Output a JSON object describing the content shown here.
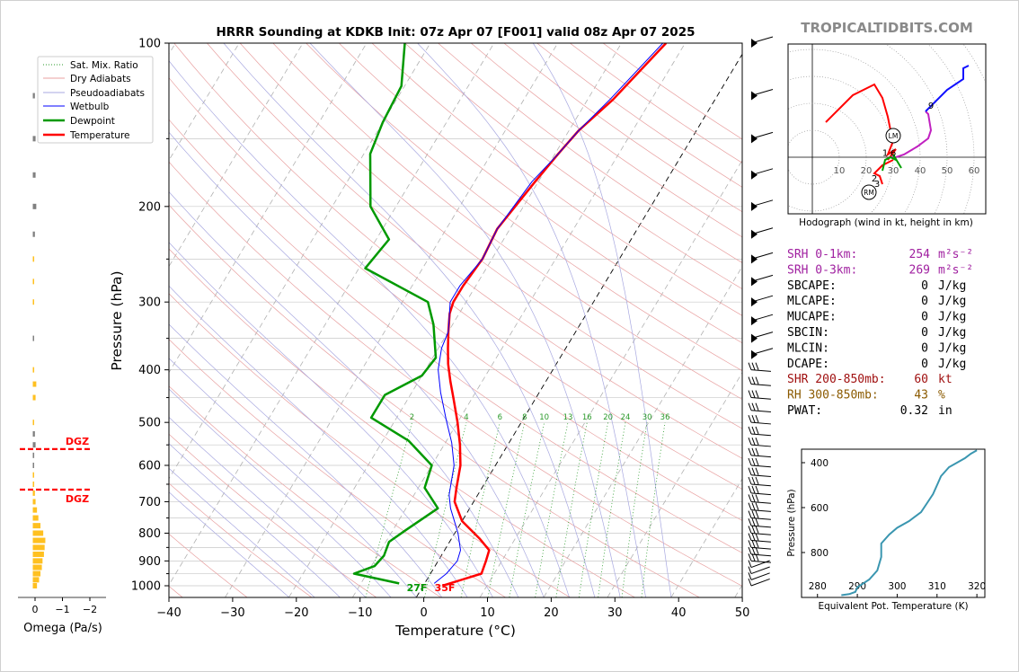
{
  "page": {
    "title": "HRRR Sounding at KDKB Init: 07z Apr 07 [F001] valid 08z Apr 07 2025",
    "brand": "TROPICALTIDBITS.COM"
  },
  "colors": {
    "temperature": "#ff0000",
    "dewpoint": "#009900",
    "wetbulb": "#0000ff",
    "dry_adiabat": "#e8a0a0",
    "pseudoadiabat": "#a8a8e0",
    "mixing_ratio": "#2a9a2a",
    "isotherm": "#b0b0b0",
    "srh": "#a020a0",
    "shr": "#a01010",
    "rh": "#8b5a00",
    "omega_bar": "#ffc020",
    "omega_neg": "#808080",
    "dgz": "#ff0000",
    "theta_e": "#3a96b0"
  },
  "skewt": {
    "xlabel": "Temperature (°C)",
    "ylabel": "Pressure (hPa)",
    "x_ticks": [
      "−40",
      "−30",
      "−20",
      "−10",
      "0",
      "10",
      "20",
      "30",
      "40",
      "50"
    ],
    "y_ticks": [
      "100",
      "200",
      "300",
      "400",
      "500",
      "600",
      "700",
      "800",
      "900",
      "1000"
    ],
    "surface_dewpoint_label": "27F",
    "surface_temp_label": "35F",
    "mixing_ratio_labels": [
      "2",
      "4",
      "6",
      "8",
      "10",
      "13",
      "16",
      "20",
      "24",
      "30",
      "36"
    ],
    "legend": [
      "Sat. Mix. Ratio",
      "Dry Adiabats",
      "Pseudoadiabats",
      "Wetbulb",
      "Dewpoint",
      "Temperature"
    ]
  },
  "chart_data": [
    {
      "type": "line",
      "name": "skew-t",
      "xlim": [
        -40,
        50
      ],
      "ylim": [
        1050,
        100
      ],
      "yscale": "log",
      "x_unit": "°C",
      "y_unit": "hPa",
      "grid": true,
      "legend_placement": "top-left",
      "series": [
        {
          "name": "Temperature",
          "points": [
            [
              3.0,
              1000
            ],
            [
              8.0,
              950
            ],
            [
              7.5,
              900
            ],
            [
              7.0,
              860
            ],
            [
              4.5,
              820
            ],
            [
              0.0,
              760
            ],
            [
              -3.0,
              700
            ],
            [
              -4.0,
              660
            ],
            [
              -5.5,
              600
            ],
            [
              -7.5,
              550
            ],
            [
              -10.0,
              500
            ],
            [
              -13.0,
              450
            ],
            [
              -15.0,
              420
            ],
            [
              -17.0,
              390
            ],
            [
              -18.5,
              365
            ],
            [
              -20.0,
              340
            ],
            [
              -21.5,
              315
            ],
            [
              -22.0,
              300
            ],
            [
              -22.0,
              280
            ],
            [
              -21.5,
              250
            ],
            [
              -22.0,
              220
            ],
            [
              -20.5,
              180
            ],
            [
              -19.5,
              160
            ],
            [
              -18.5,
              145
            ],
            [
              -16.0,
              127
            ],
            [
              -13.0,
              100
            ]
          ]
        },
        {
          "name": "Dewpoint",
          "points": [
            [
              -4.0,
              990
            ],
            [
              -12.0,
              950
            ],
            [
              -9.5,
              920
            ],
            [
              -9.0,
              880
            ],
            [
              -9.5,
              830
            ],
            [
              -8.0,
              790
            ],
            [
              -5.0,
              720
            ],
            [
              -9.0,
              660
            ],
            [
              -10.0,
              600
            ],
            [
              -16.0,
              540
            ],
            [
              -24.0,
              490
            ],
            [
              -24.0,
              445
            ],
            [
              -20.0,
              410
            ],
            [
              -19.5,
              380
            ],
            [
              -23.0,
              330
            ],
            [
              -26.0,
              300
            ],
            [
              -39.0,
              260
            ],
            [
              -38.0,
              230
            ],
            [
              -44.0,
              200
            ],
            [
              -49.0,
              160
            ],
            [
              -50.0,
              140
            ],
            [
              -50.5,
              120
            ],
            [
              -54.0,
              100
            ]
          ]
        },
        {
          "name": "Wetbulb",
          "points": [
            [
              1.5,
              990
            ],
            [
              2.5,
              950
            ],
            [
              3.0,
              900
            ],
            [
              2.5,
              860
            ],
            [
              0.5,
              800
            ],
            [
              -3.0,
              720
            ],
            [
              -4.5,
              680
            ],
            [
              -6.5,
              600
            ],
            [
              -9.0,
              545
            ],
            [
              -12.0,
              495
            ],
            [
              -15.5,
              440
            ],
            [
              -18.0,
              400
            ],
            [
              -19.5,
              365
            ],
            [
              -20.0,
              340
            ],
            [
              -22.5,
              300
            ],
            [
              -22.5,
              280
            ],
            [
              -21.5,
              250
            ],
            [
              -22.0,
              220
            ],
            [
              -21.0,
              180
            ],
            [
              -19.5,
              160
            ],
            [
              -18.5,
              145
            ],
            [
              -16.5,
              127
            ],
            [
              -13.5,
              100
            ]
          ]
        }
      ]
    },
    {
      "type": "line",
      "name": "hodograph",
      "xlabel": "Hodograph (wind in kt, height in km)",
      "ring_labels": [
        "10",
        "20",
        "30",
        "40",
        "50",
        "60"
      ],
      "height_labels": [
        "1",
        "6",
        "2",
        "3",
        "9"
      ],
      "markers": [
        "LM",
        "RM"
      ],
      "series": [
        {
          "name": "0-1km",
          "points": [
            [
              26,
              -10
            ],
            [
              25,
              -7
            ],
            [
              23,
              -6
            ],
            [
              26,
              -3
            ],
            [
              28,
              -2
            ],
            [
              30,
              -1
            ]
          ]
        },
        {
          "name": "1-3km",
          "points": [
            [
              28,
              -1
            ],
            [
              31,
              3
            ],
            [
              28,
              1
            ],
            [
              30,
              6
            ],
            [
              29,
              10
            ],
            [
              28,
              15
            ],
            [
              26,
              22
            ],
            [
              23,
              27
            ],
            [
              15,
              23
            ],
            [
              10,
              18
            ],
            [
              5,
              13
            ]
          ]
        },
        {
          "name": "3-9km",
          "points": [
            [
              29,
              0
            ],
            [
              31,
              0
            ],
            [
              34,
              1
            ],
            [
              39,
              4
            ],
            [
              43,
              7
            ],
            [
              44,
              10
            ],
            [
              43,
              16
            ],
            [
              42,
              17
            ]
          ]
        },
        {
          "name": "9km+",
          "points": [
            [
              42,
              17
            ],
            [
              50,
              25
            ],
            [
              56,
              29
            ],
            [
              56,
              33
            ],
            [
              58,
              34
            ]
          ]
        }
      ]
    },
    {
      "type": "bar",
      "name": "omega",
      "xlabel": "Omega (Pa/s)",
      "x_ticks": [
        "0",
        "−1",
        "−2"
      ],
      "dgz_label": "DGZ",
      "dgz_levels_hpa": [
        560,
        665
      ],
      "y_unit": "hPa",
      "note_values": "length in Pa/s (positive drawn left of zero line)",
      "bars": [
        {
          "p": 1000,
          "v": 0.3
        },
        {
          "p": 975,
          "v": 0.45
        },
        {
          "p": 950,
          "v": 0.55
        },
        {
          "p": 925,
          "v": 0.65
        },
        {
          "p": 900,
          "v": 0.7
        },
        {
          "p": 875,
          "v": 0.8
        },
        {
          "p": 850,
          "v": 0.85
        },
        {
          "p": 825,
          "v": 0.9
        },
        {
          "p": 800,
          "v": 0.75
        },
        {
          "p": 775,
          "v": 0.55
        },
        {
          "p": 750,
          "v": 0.4
        },
        {
          "p": 725,
          "v": 0.3
        },
        {
          "p": 700,
          "v": 0.2
        },
        {
          "p": 675,
          "v": 0.15
        },
        {
          "p": 650,
          "v": 0.1
        },
        {
          "p": 625,
          "v": 0.05
        },
        {
          "p": 600,
          "v": -0.05
        },
        {
          "p": 575,
          "v": -0.1
        },
        {
          "p": 550,
          "v": -0.2
        },
        {
          "p": 525,
          "v": -0.15
        },
        {
          "p": 500,
          "v": 0.05
        },
        {
          "p": 450,
          "v": 0.2
        },
        {
          "p": 425,
          "v": 0.25
        },
        {
          "p": 400,
          "v": 0.1
        },
        {
          "p": 350,
          "v": -0.05
        },
        {
          "p": 300,
          "v": 0.05
        },
        {
          "p": 275,
          "v": 0.05
        },
        {
          "p": 250,
          "v": 0.1
        },
        {
          "p": 225,
          "v": -0.15
        },
        {
          "p": 200,
          "v": -0.25
        },
        {
          "p": 175,
          "v": -0.2
        },
        {
          "p": 150,
          "v": -0.2
        },
        {
          "p": 125,
          "v": -0.15
        }
      ]
    },
    {
      "type": "line",
      "name": "theta-e",
      "xlabel": "Equivalent Pot. Temperature (K)",
      "ylabel": "Pressure (hPa)",
      "xlim": [
        276,
        322
      ],
      "ylim": [
        1000,
        340
      ],
      "x_ticks": [
        "280",
        "290",
        "300",
        "310",
        "320"
      ],
      "y_ticks": [
        "400",
        "600",
        "800"
      ],
      "points": [
        [
          286,
          990
        ],
        [
          288,
          985
        ],
        [
          289.5,
          975
        ],
        [
          290,
          955
        ],
        [
          293,
          920
        ],
        [
          295,
          880
        ],
        [
          296,
          820
        ],
        [
          296,
          760
        ],
        [
          298,
          720
        ],
        [
          300,
          690
        ],
        [
          303,
          660
        ],
        [
          306,
          620
        ],
        [
          307.5,
          580
        ],
        [
          309,
          540
        ],
        [
          310,
          500
        ],
        [
          311,
          460
        ],
        [
          313,
          420
        ],
        [
          315,
          400
        ],
        [
          317,
          380
        ],
        [
          318.5,
          360
        ],
        [
          320,
          345
        ]
      ]
    }
  ],
  "indices": [
    {
      "label": "SRH 0-1km:",
      "value": "254",
      "unit": "m²s⁻²",
      "color": "srh"
    },
    {
      "label": "SRH 0-3km:",
      "value": "269",
      "unit": "m²s⁻²",
      "color": "srh"
    },
    {
      "label": "SBCAPE:",
      "value": "0",
      "unit": "J/kg",
      "color": "black"
    },
    {
      "label": "MLCAPE:",
      "value": "0",
      "unit": "J/kg",
      "color": "black"
    },
    {
      "label": "MUCAPE:",
      "value": "0",
      "unit": "J/kg",
      "color": "black"
    },
    {
      "label": "SBCIN:",
      "value": "0",
      "unit": "J/kg",
      "color": "black"
    },
    {
      "label": "MLCIN:",
      "value": "0",
      "unit": "J/kg",
      "color": "black"
    },
    {
      "label": "DCAPE:",
      "value": "0",
      "unit": "J/kg",
      "color": "black"
    },
    {
      "label": "SHR 200-850mb:",
      "value": "60",
      "unit": "kt",
      "color": "shr"
    },
    {
      "label": "RH 300-850mb:",
      "value": "43",
      "unit": "%",
      "color": "rh"
    },
    {
      "label": "PWAT:",
      "value": "0.32",
      "unit": "in",
      "color": "black"
    }
  ],
  "wind_barbs_hpa": [
    100,
    125,
    150,
    175,
    200,
    225,
    250,
    275,
    300,
    325,
    350,
    375,
    400,
    425,
    450,
    475,
    500,
    525,
    550,
    575,
    600,
    625,
    650,
    675,
    700,
    725,
    750,
    775,
    800,
    825,
    850,
    875,
    900,
    925,
    950,
    975,
    1000
  ]
}
